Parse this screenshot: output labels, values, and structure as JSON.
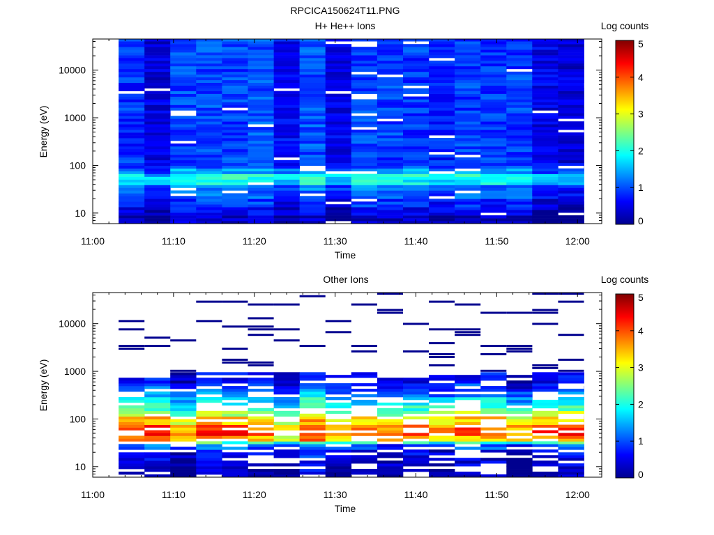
{
  "figure_title": "RPCICA150624T11.PNG",
  "colormap": [
    "#00008f",
    "#0000ff",
    "#0080ff",
    "#00ffff",
    "#80ff80",
    "#ffff00",
    "#ff8000",
    "#ff0000",
    "#800000"
  ],
  "chart_data": [
    {
      "type": "heatmap",
      "title": "H+ He++ Ions",
      "xlabel": "Time",
      "ylabel": "Energy (eV)",
      "x_ticks": [
        "11:00",
        "11:10",
        "11:20",
        "11:30",
        "11:40",
        "11:50",
        "12:00"
      ],
      "x_range_minutes": [
        0,
        63
      ],
      "y_scale": "log",
      "y_range": [
        6,
        45000
      ],
      "y_ticks": [
        "10",
        "100",
        "1000",
        "10000"
      ],
      "colorbar": {
        "label": "Log counts",
        "range": [
          0,
          5
        ],
        "ticks": [
          "0",
          "1",
          "2",
          "3",
          "4",
          "5"
        ]
      },
      "time_bins_minutes": [
        3.2,
        6.4,
        9.6,
        12.8,
        16.0,
        19.2,
        22.4,
        25.6,
        28.8,
        32.0,
        35.2,
        38.4,
        41.6,
        44.8,
        48.0,
        51.2,
        54.4,
        57.6,
        60.8
      ],
      "energy_profile": [
        {
          "e_low": 6,
          "e_high": 9,
          "log_counts": 0.1
        },
        {
          "e_low": 9,
          "e_high": 14,
          "log_counts": 0.4
        },
        {
          "e_low": 14,
          "e_high": 20,
          "log_counts": 0.6
        },
        {
          "e_low": 20,
          "e_high": 28,
          "log_counts": 0.9
        },
        {
          "e_low": 28,
          "e_high": 38,
          "log_counts": 1.0
        },
        {
          "e_low": 38,
          "e_high": 50,
          "log_counts": 1.7
        },
        {
          "e_low": 50,
          "e_high": 65,
          "log_counts": 1.8
        },
        {
          "e_low": 65,
          "e_high": 85,
          "log_counts": 1.2
        },
        {
          "e_low": 85,
          "e_high": 110,
          "log_counts": 0.8
        },
        {
          "e_low": 110,
          "e_high": 45000,
          "log_counts": 0.7
        }
      ],
      "variation": 0.6,
      "dropout_fraction": 0.04,
      "fill": "dense"
    },
    {
      "type": "heatmap",
      "title": "Other Ions",
      "xlabel": "Time",
      "ylabel": "Energy (eV)",
      "x_ticks": [
        "11:00",
        "11:10",
        "11:20",
        "11:30",
        "11:40",
        "11:50",
        "12:00"
      ],
      "x_range_minutes": [
        0,
        63
      ],
      "y_scale": "log",
      "y_range": [
        6,
        45000
      ],
      "y_ticks": [
        "10",
        "100",
        "1000",
        "10000"
      ],
      "colorbar": {
        "label": "Log counts",
        "range": [
          0,
          5
        ],
        "ticks": [
          "0",
          "1",
          "2",
          "3",
          "4",
          "5"
        ]
      },
      "time_bins_minutes": [
        3.2,
        6.4,
        9.6,
        12.8,
        16.0,
        19.2,
        22.4,
        25.6,
        28.8,
        32.0,
        35.2,
        38.4,
        41.6,
        44.8,
        48.0,
        51.2,
        54.4,
        57.6,
        60.8
      ],
      "energy_profile": [
        {
          "e_low": 6,
          "e_high": 10,
          "log_counts": 0.2
        },
        {
          "e_low": 10,
          "e_high": 16,
          "log_counts": 0.3
        },
        {
          "e_low": 16,
          "e_high": 22,
          "log_counts": 0.5
        },
        {
          "e_low": 22,
          "e_high": 28,
          "log_counts": 0.9
        },
        {
          "e_low": 28,
          "e_high": 35,
          "log_counts": 2.0
        },
        {
          "e_low": 35,
          "e_high": 45,
          "log_counts": 3.4
        },
        {
          "e_low": 45,
          "e_high": 60,
          "log_counts": 4.0
        },
        {
          "e_low": 60,
          "e_high": 80,
          "log_counts": 3.8
        },
        {
          "e_low": 80,
          "e_high": 110,
          "log_counts": 3.2
        },
        {
          "e_low": 110,
          "e_high": 150,
          "log_counts": 2.6
        },
        {
          "e_low": 150,
          "e_high": 200,
          "log_counts": 2.1
        },
        {
          "e_low": 200,
          "e_high": 280,
          "log_counts": 1.7
        },
        {
          "e_low": 280,
          "e_high": 400,
          "log_counts": 1.2
        },
        {
          "e_low": 400,
          "e_high": 600,
          "log_counts": 0.8
        },
        {
          "e_low": 600,
          "e_high": 900,
          "log_counts": 0.5
        }
      ],
      "variation": 0.7,
      "dropout_fraction": 0.25,
      "fill": "sparse_above",
      "sparse_threshold_ev": 900
    }
  ]
}
